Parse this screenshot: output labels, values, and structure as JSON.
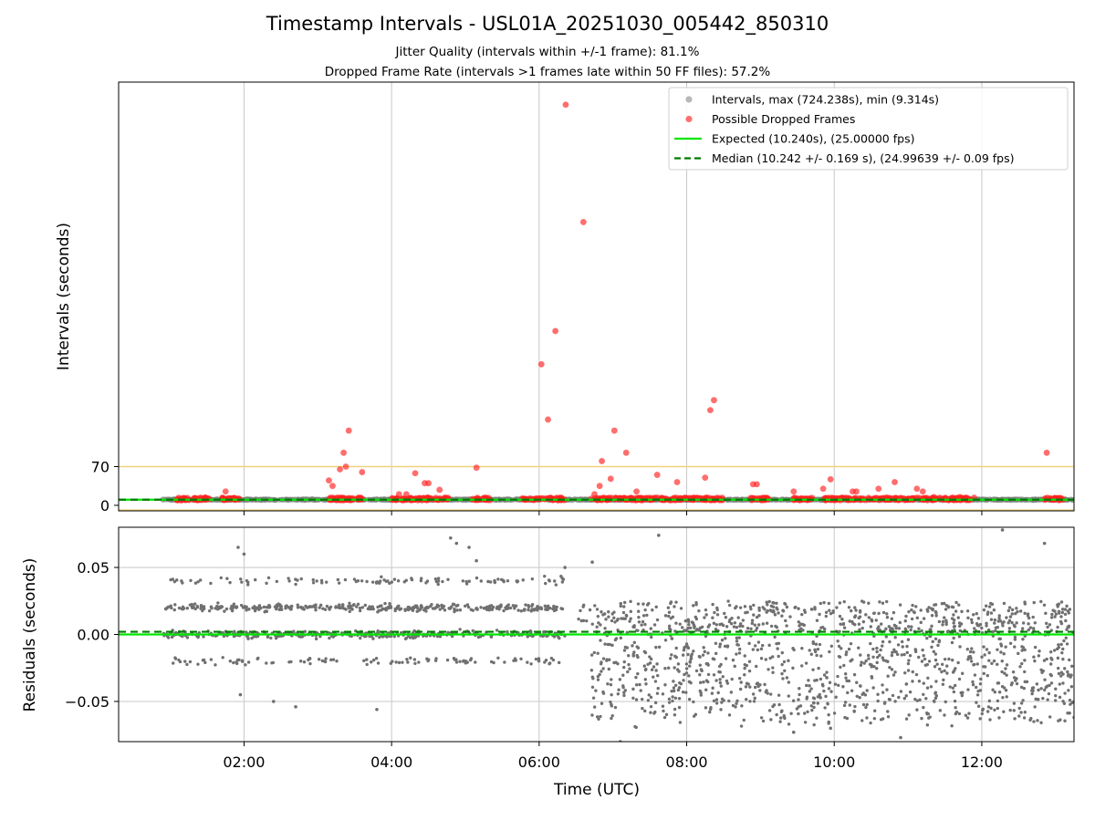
{
  "chart_data": {
    "type": "scatter",
    "title": "Timestamp Intervals - USL01A_20251030_005442_850310",
    "subtitle1": "Jitter Quality (intervals within +/-1 frame): 81.1%",
    "subtitle2": "Dropped Frame Rate (intervals >1 frames late within 50 FF files): 57.2%",
    "xlabel": "Time (UTC)",
    "xlim_hours": [
      0.3,
      13.25
    ],
    "xticks": [
      {
        "label": "02:00",
        "hours": 2
      },
      {
        "label": "04:00",
        "hours": 4
      },
      {
        "label": "06:00",
        "hours": 6
      },
      {
        "label": "08:00",
        "hours": 8
      },
      {
        "label": "10:00",
        "hours": 10
      },
      {
        "label": "12:00",
        "hours": 12
      }
    ],
    "top_panel": {
      "ylabel": "Intervals (seconds)",
      "ylim": [
        -10,
        765
      ],
      "yticks": [
        {
          "label": "0",
          "value": 0
        },
        {
          "label": "70",
          "value": 70
        }
      ],
      "threshold_line": 70,
      "legend_position": "upper-right",
      "legend": [
        {
          "label": "Intervals, max (724.238s), min (9.314s)",
          "kind": "dot",
          "color": "#a0a0a0"
        },
        {
          "label": "Possible Dropped Frames",
          "kind": "dot",
          "color": "#ff4040"
        },
        {
          "label": "Expected (10.240s), (25.00000 fps)",
          "kind": "line",
          "color": "#00e600"
        },
        {
          "label": "Median (10.242 +/- 0.169 s), (24.99639 +/- 0.09 fps)",
          "kind": "dash",
          "color": "#007a00"
        }
      ],
      "expected_interval": 10.24,
      "median_interval": 10.242,
      "regular_intervals": {
        "min": 9.314,
        "max": 11.2
      },
      "dropped_frame_bursts": [
        {
          "start": 1.05,
          "end": 1.55,
          "n": 40
        },
        {
          "start": 1.7,
          "end": 1.95,
          "n": 22
        },
        {
          "start": 3.15,
          "end": 3.65,
          "n": 45
        },
        {
          "start": 4.0,
          "end": 4.8,
          "n": 60
        },
        {
          "start": 5.1,
          "end": 5.35,
          "n": 20
        },
        {
          "start": 5.75,
          "end": 6.35,
          "n": 40
        },
        {
          "start": 6.7,
          "end": 7.1,
          "n": 30
        },
        {
          "start": 7.1,
          "end": 8.5,
          "n": 120
        },
        {
          "start": 8.85,
          "end": 9.1,
          "n": 25
        },
        {
          "start": 9.45,
          "end": 9.7,
          "n": 22
        },
        {
          "start": 9.85,
          "end": 11.9,
          "n": 160
        },
        {
          "start": 12.85,
          "end": 13.1,
          "n": 20
        }
      ],
      "dropped_frame_outliers": [
        {
          "time": 1.75,
          "interval": 25
        },
        {
          "time": 3.15,
          "interval": 45
        },
        {
          "time": 3.2,
          "interval": 35
        },
        {
          "time": 3.3,
          "interval": 65
        },
        {
          "time": 3.35,
          "interval": 95
        },
        {
          "time": 3.38,
          "interval": 70
        },
        {
          "time": 3.42,
          "interval": 135
        },
        {
          "time": 3.6,
          "interval": 60
        },
        {
          "time": 4.1,
          "interval": 20
        },
        {
          "time": 4.2,
          "interval": 20
        },
        {
          "time": 4.32,
          "interval": 58
        },
        {
          "time": 4.45,
          "interval": 40
        },
        {
          "time": 4.5,
          "interval": 40
        },
        {
          "time": 4.65,
          "interval": 28
        },
        {
          "time": 5.15,
          "interval": 68
        },
        {
          "time": 6.03,
          "interval": 255
        },
        {
          "time": 6.12,
          "interval": 155
        },
        {
          "time": 6.22,
          "interval": 315
        },
        {
          "time": 6.36,
          "interval": 724.238
        },
        {
          "time": 6.6,
          "interval": 512
        },
        {
          "time": 6.75,
          "interval": 20
        },
        {
          "time": 6.82,
          "interval": 35
        },
        {
          "time": 6.85,
          "interval": 80
        },
        {
          "time": 6.97,
          "interval": 48
        },
        {
          "time": 7.02,
          "interval": 135
        },
        {
          "time": 7.18,
          "interval": 95
        },
        {
          "time": 7.32,
          "interval": 25
        },
        {
          "time": 7.6,
          "interval": 55
        },
        {
          "time": 7.87,
          "interval": 42
        },
        {
          "time": 8.25,
          "interval": 50
        },
        {
          "time": 8.32,
          "interval": 172
        },
        {
          "time": 8.37,
          "interval": 190
        },
        {
          "time": 8.9,
          "interval": 38
        },
        {
          "time": 8.95,
          "interval": 38
        },
        {
          "time": 9.45,
          "interval": 25
        },
        {
          "time": 9.85,
          "interval": 30
        },
        {
          "time": 9.95,
          "interval": 47
        },
        {
          "time": 10.25,
          "interval": 25
        },
        {
          "time": 10.3,
          "interval": 25
        },
        {
          "time": 10.6,
          "interval": 30
        },
        {
          "time": 10.82,
          "interval": 42
        },
        {
          "time": 11.12,
          "interval": 30
        },
        {
          "time": 11.2,
          "interval": 25
        },
        {
          "time": 11.35,
          "interval": 15
        },
        {
          "time": 11.7,
          "interval": 15
        },
        {
          "time": 12.88,
          "interval": 95
        }
      ]
    },
    "bottom_panel": {
      "ylabel": "Residuals (seconds)",
      "ylim": [
        -0.08,
        0.08
      ],
      "yticks": [
        {
          "label": "0.05",
          "value": 0.05
        },
        {
          "label": "0.00",
          "value": 0.0
        },
        {
          "label": "−0.05",
          "value": -0.05
        }
      ],
      "expected_line": 0.0,
      "median_line": 0.002,
      "regimes": [
        {
          "start": 0.9,
          "end": 6.35,
          "pattern": "quantized",
          "levels": [
            -0.02,
            0.0,
            0.02,
            0.04
          ],
          "spread": 0.003,
          "n": 900
        },
        {
          "start": 6.5,
          "end": 6.7,
          "pattern": "sparse",
          "levels": [
            0.01,
            0.02
          ],
          "spread": 0.003,
          "n": 8
        },
        {
          "start": 6.7,
          "end": 13.25,
          "pattern": "continuous",
          "range": [
            -0.07,
            0.03
          ],
          "n": 1400
        }
      ],
      "notable_points": [
        {
          "time": 1.92,
          "residual": 0.065
        },
        {
          "time": 2.0,
          "residual": 0.06
        },
        {
          "time": 4.8,
          "residual": 0.072
        },
        {
          "time": 4.88,
          "residual": 0.068
        },
        {
          "time": 5.05,
          "residual": 0.065
        },
        {
          "time": 5.15,
          "residual": 0.055
        },
        {
          "time": 6.35,
          "residual": 0.05
        },
        {
          "time": 6.72,
          "residual": 0.054
        },
        {
          "time": 7.62,
          "residual": 0.074
        },
        {
          "time": 12.28,
          "residual": 0.078
        },
        {
          "time": 12.85,
          "residual": 0.068
        },
        {
          "time": 1.95,
          "residual": -0.045
        },
        {
          "time": 2.4,
          "residual": -0.05
        },
        {
          "time": 2.7,
          "residual": -0.054
        },
        {
          "time": 3.8,
          "residual": -0.056
        },
        {
          "time": 9.45,
          "residual": -0.073
        },
        {
          "time": 9.95,
          "residual": -0.07
        },
        {
          "time": 10.9,
          "residual": -0.077
        },
        {
          "time": 7.1,
          "residual": -0.08
        }
      ]
    }
  }
}
